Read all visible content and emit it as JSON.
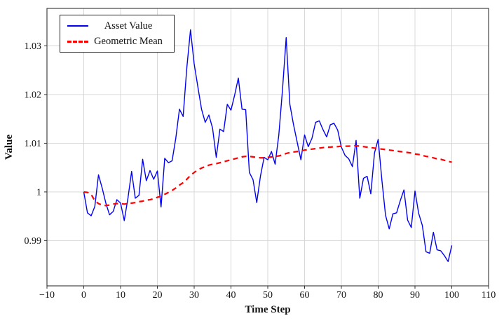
{
  "chart_data": {
    "type": "line",
    "title": "",
    "xlabel": "Time Step",
    "ylabel": "Value",
    "xlim": [
      -10,
      110
    ],
    "ylim": [
      0.9807,
      1.0377
    ],
    "x_ticks": [
      -10,
      0,
      10,
      20,
      30,
      40,
      50,
      60,
      70,
      80,
      90,
      100,
      110
    ],
    "x_tick_labels": [
      "−10",
      "0",
      "10",
      "20",
      "30",
      "40",
      "50",
      "60",
      "70",
      "80",
      "90",
      "100",
      "110"
    ],
    "y_ticks": [
      0.99,
      1.0,
      1.01,
      1.02,
      1.03
    ],
    "y_tick_labels": [
      "0.99",
      "1",
      "1.01",
      "1.02",
      "1.03"
    ],
    "grid": true,
    "grid_color": "#d4d4d4",
    "frame_color": "#333333",
    "legend_position": "top-left",
    "x_start": 0,
    "x_step": 1,
    "series": [
      {
        "name": "Asset Value",
        "color": "#0202f0",
        "style": "solid",
        "width": 1.4,
        "values": [
          1.0,
          0.9957,
          0.9951,
          0.997,
          1.0035,
          1.0008,
          0.9977,
          0.9953,
          0.996,
          0.9984,
          0.9977,
          0.9941,
          0.9987,
          1.0042,
          0.9987,
          0.9993,
          1.0067,
          1.0023,
          1.0044,
          1.0026,
          1.0043,
          0.9969,
          1.0069,
          1.006,
          1.0064,
          1.011,
          1.017,
          1.0155,
          1.0255,
          1.0333,
          1.0263,
          1.0216,
          1.017,
          1.0143,
          1.0158,
          1.0131,
          1.0071,
          1.0129,
          1.0124,
          1.018,
          1.0168,
          1.0199,
          1.0234,
          1.017,
          1.0169,
          1.004,
          1.0025,
          0.9978,
          1.0032,
          1.0071,
          1.0066,
          1.0083,
          1.0057,
          1.0117,
          1.021,
          1.0317,
          1.018,
          1.0138,
          1.0102,
          1.0066,
          1.0117,
          1.0093,
          1.011,
          1.0143,
          1.0146,
          1.0128,
          1.0113,
          1.0138,
          1.0141,
          1.0127,
          1.0092,
          1.0075,
          1.0068,
          1.0052,
          1.0106,
          0.9987,
          1.0028,
          1.0032,
          0.9996,
          1.008,
          1.0108,
          1.0025,
          0.9952,
          0.9924,
          0.9955,
          0.9957,
          0.9982,
          1.0004,
          0.9942,
          0.9927,
          1.0002,
          0.9956,
          0.9931,
          0.9877,
          0.9874,
          0.9917,
          0.9881,
          0.9879,
          0.9869,
          0.9857,
          0.989
        ]
      },
      {
        "name": "Geometric Mean",
        "color": "#fe0000",
        "style": "dashed",
        "width": 2.2,
        "values": [
          1.0,
          0.9999,
          0.9995,
          0.9982,
          0.9976,
          0.9973,
          0.9972,
          0.9973,
          0.9975,
          0.9976,
          0.9976,
          0.9975,
          0.9976,
          0.9977,
          0.9978,
          0.998,
          0.9981,
          0.9983,
          0.9984,
          0.9986,
          0.9989,
          0.9991,
          0.9995,
          0.9999,
          1.0003,
          1.0008,
          1.0014,
          1.0019,
          1.0026,
          1.0034,
          1.004,
          1.0045,
          1.0049,
          1.0052,
          1.0055,
          1.0057,
          1.0058,
          1.006,
          1.0062,
          1.0064,
          1.0066,
          1.0068,
          1.007,
          1.0072,
          1.0073,
          1.0073,
          1.0072,
          1.0071,
          1.007,
          1.007,
          1.0071,
          1.0072,
          1.0073,
          1.0074,
          1.0076,
          1.0079,
          1.0081,
          1.0082,
          1.0083,
          1.0084,
          1.0086,
          1.0087,
          1.0088,
          1.0089,
          1.009,
          1.0091,
          1.0092,
          1.0092,
          1.0093,
          1.0093,
          1.0094,
          1.0094,
          1.0094,
          1.0095,
          1.0095,
          1.0094,
          1.0093,
          1.0092,
          1.0091,
          1.009,
          1.0089,
          1.0088,
          1.0087,
          1.0086,
          1.0085,
          1.0084,
          1.0083,
          1.0082,
          1.0081,
          1.008,
          1.0078,
          1.0077,
          1.0075,
          1.0073,
          1.0072,
          1.007,
          1.0068,
          1.0067,
          1.0065,
          1.0063,
          1.0061
        ]
      }
    ]
  }
}
